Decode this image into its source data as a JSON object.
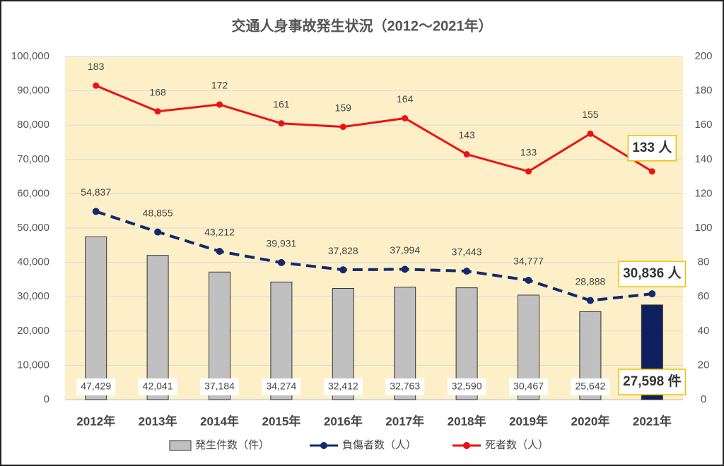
{
  "chart_data": {
    "type": "combo",
    "title": "交通人身事故発生状況（2012～2021年）",
    "categories": [
      "2012年",
      "2013年",
      "2014年",
      "2015年",
      "2016年",
      "2017年",
      "2018年",
      "2019年",
      "2020年",
      "2021年"
    ],
    "series": [
      {
        "name": "発生件数（件）",
        "type": "bar",
        "color": "#c0c0c0",
        "colors": [
          "#c0c0c0",
          "#c0c0c0",
          "#c0c0c0",
          "#c0c0c0",
          "#c0c0c0",
          "#c0c0c0",
          "#c0c0c0",
          "#c0c0c0",
          "#c0c0c0",
          "#0d1f5c"
        ],
        "values": [
          47429,
          42041,
          37184,
          34274,
          32412,
          32763,
          32590,
          30467,
          25642,
          27598
        ],
        "value_labels": [
          "47,429",
          "42,041",
          "37,184",
          "34,274",
          "32,412",
          "32,763",
          "32,590",
          "30,467",
          "25,642",
          "27,598 件"
        ]
      },
      {
        "name": "負傷者数（人）",
        "type": "line",
        "dashed": true,
        "color": "#13296b",
        "values": [
          54837,
          48855,
          43212,
          39931,
          37828,
          37994,
          37443,
          34777,
          28888,
          30836
        ],
        "value_labels": [
          "54,837",
          "48,855",
          "43,212",
          "39,931",
          "37,828",
          "37,994",
          "37,443",
          "34,777",
          "28,888",
          "30,836 人"
        ]
      },
      {
        "name": "死者数（人）",
        "type": "line",
        "axis": "y2",
        "color": "#ee1111",
        "values": [
          183,
          168,
          172,
          161,
          159,
          164,
          143,
          133,
          155,
          133
        ],
        "value_labels": [
          "183",
          "168",
          "172",
          "161",
          "159",
          "164",
          "143",
          "133",
          "155",
          "133 人"
        ]
      }
    ],
    "ylim": [
      0,
      100000
    ],
    "yticks": [
      0,
      {
        "value": 10000,
        "label": "10,000"
      },
      {
        "value": 20000,
        "label": "20,000"
      },
      {
        "value": 30000,
        "label": "30,000"
      },
      {
        "value": 40000,
        "label": "40,000"
      },
      {
        "value": 50000,
        "label": "50,000"
      },
      {
        "value": 60000,
        "label": "60,000"
      },
      {
        "value": 70000,
        "label": "70,000"
      },
      {
        "value": 80000,
        "label": "80,000"
      },
      {
        "value": 90000,
        "label": "90,000"
      },
      {
        "value": 100000,
        "label": "100,000"
      }
    ],
    "y2lim": [
      0,
      200
    ],
    "y2ticks": [
      0,
      20,
      40,
      60,
      80,
      100,
      120,
      140,
      160,
      180,
      200
    ],
    "grid": true
  }
}
